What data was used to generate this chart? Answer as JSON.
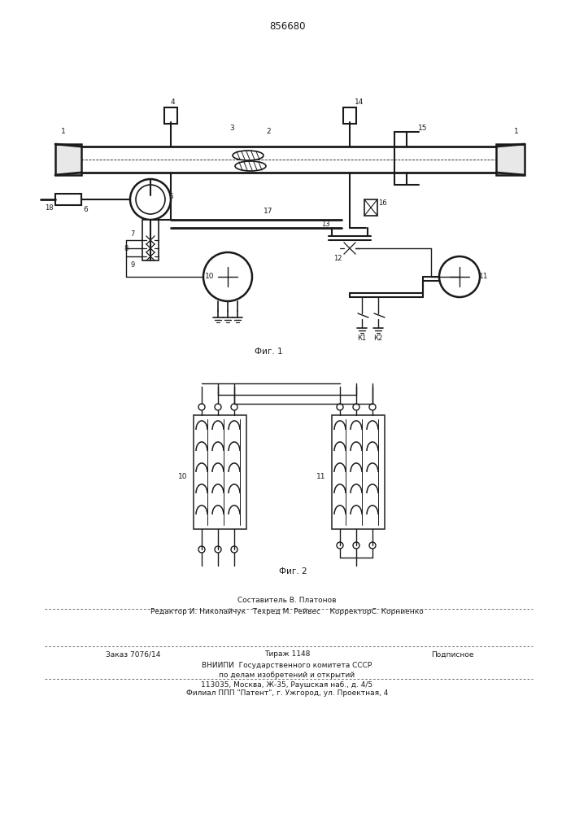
{
  "patent_number": "856680",
  "fig1_label": "Фиг. 1",
  "fig2_label": "Фиг. 2",
  "background_color": "#ffffff",
  "line_color": "#1a1a1a",
  "footer": {
    "line1": "Составитель В. Платонов",
    "line2": "Редактор И. Николайчук   Техред М. Рейвес    КорректорС. Корниенко",
    "order": "Заказ 7076/14",
    "tirazh": "Тираж 1148",
    "podp": "Подписное",
    "vniip1": "ВНИИПИ  Государственного комитета СССР",
    "vniip2": "по делам изобретений и открытий",
    "addr": "113035, Москва, Ж-35, Раушская наб., д. 4/5",
    "filial": "Филиал ППП \"Патент\", г. Ужгород, ул. Проектная, 4"
  }
}
